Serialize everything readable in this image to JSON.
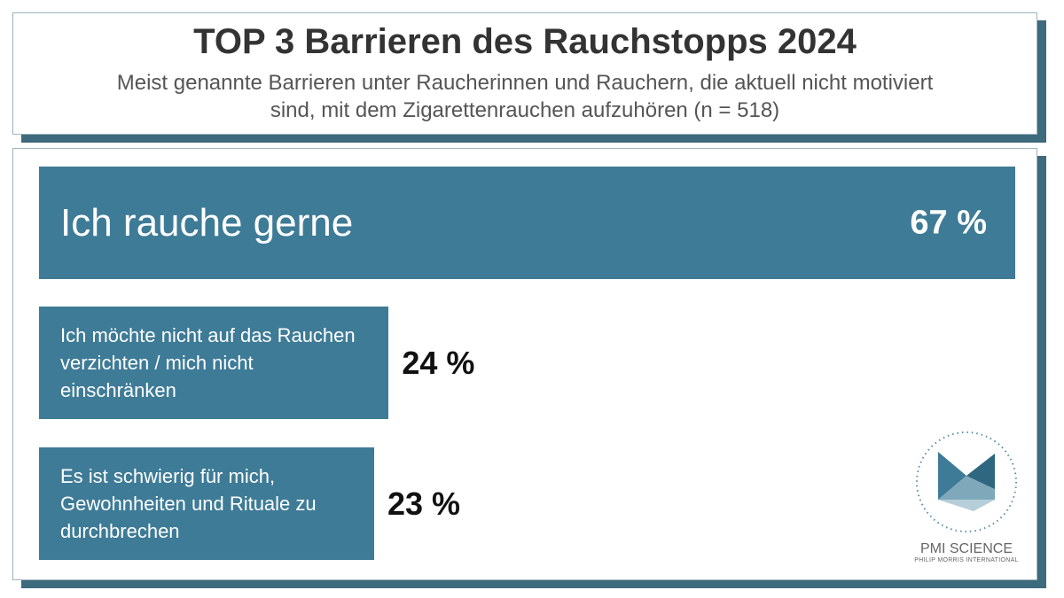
{
  "chart_data": {
    "type": "bar",
    "orientation": "horizontal",
    "title": "TOP 3 Barrieren des Rauchstopps 2024",
    "subtitle": "Meist genannte Barrieren unter Raucherinnen und Rauchern, die aktuell nicht motiviert sind, mit dem Zigarettenrauchen aufzuhören (n = 518)",
    "categories": [
      "Ich rauche gerne",
      "Ich möchte nicht auf das Rauchen verzichten / mich nicht einschränken",
      "Es ist schwierig für mich, Gewohnheiten und Rituale zu durchbrechen"
    ],
    "values": [
      67,
      24,
      23
    ],
    "value_labels": [
      "67 %",
      "24 %",
      "23 %"
    ],
    "color": "#3e7b97"
  },
  "logo": {
    "name": "PMI SCIENCE",
    "subtitle": "PHILIP MORRIS INTERNATIONAL"
  }
}
